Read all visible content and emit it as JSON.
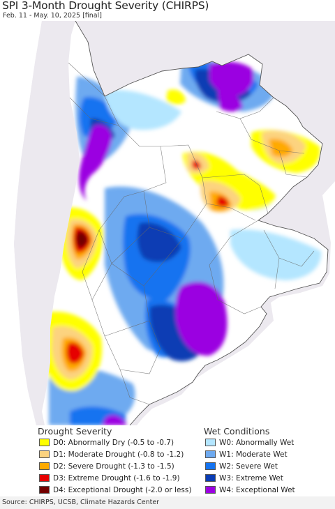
{
  "title": "SPI 3-Month Drought Severity (CHIRPS)",
  "subtitle": "Feb. 11 - May. 10, 2025 [final]",
  "legend": {
    "drought_title": "Drought Severity",
    "wet_title": "Wet Conditions",
    "drought": [
      {
        "label": "D0: Abnormally Dry (-0.5 to -0.7)",
        "color": "#ffff00"
      },
      {
        "label": "D1: Moderate Drought (-0.8 to -1.2)",
        "color": "#fcd37f"
      },
      {
        "label": "D2: Severe Drought (-1.3 to -1.5)",
        "color": "#ffaa00"
      },
      {
        "label": "D3: Extreme Drought (-1.6 to -1.9)",
        "color": "#e60000"
      },
      {
        "label": "D4: Exceptional Drought (-2.0 or less)",
        "color": "#730000"
      }
    ],
    "wet": [
      {
        "label": "W0: Abnormally Wet",
        "color": "#b4e6ff"
      },
      {
        "label": "W1: Moderate Wet",
        "color": "#6eaaf0"
      },
      {
        "label": "W2: Severe Wet",
        "color": "#1473f0"
      },
      {
        "label": "W3: Extreme Wet",
        "color": "#0a3cb4"
      },
      {
        "label": "W4: Exceptional Wet",
        "color": "#9b00e1"
      }
    ]
  },
  "source": "Source: CHIRPS, UCSB, Climate Hazards Center",
  "colors": {
    "outside_region": "#ece9ef",
    "ocean": "#ffffff",
    "borders": "#555555"
  }
}
